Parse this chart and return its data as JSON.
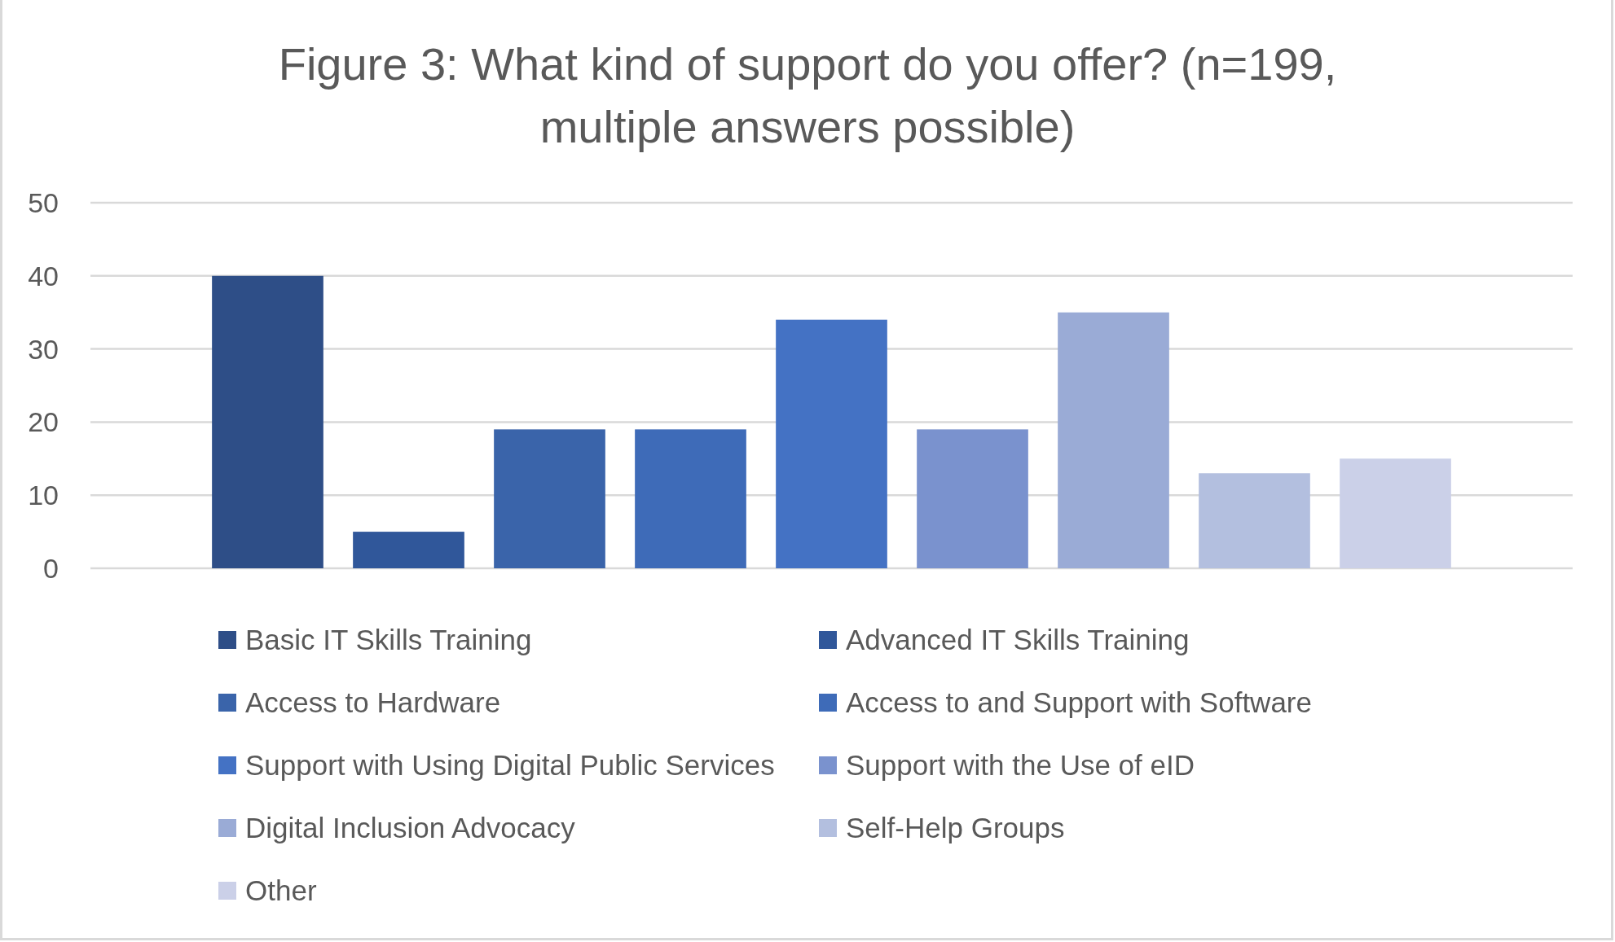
{
  "chart_data": {
    "type": "bar",
    "title": "Figure 3: What kind of support do you offer? (n=199, multiple answers possible)",
    "categories": [
      null
    ],
    "series": [
      {
        "name": "Basic IT Skills Training",
        "color": "#2e4e87",
        "values": [
          40
        ]
      },
      {
        "name": "Advanced IT Skills Training",
        "color": "#30579a",
        "values": [
          5
        ]
      },
      {
        "name": "Access to Hardware",
        "color": "#3a64aa",
        "values": [
          19
        ]
      },
      {
        "name": "Access to and Support with Software",
        "color": "#3e6bb8",
        "values": [
          19
        ]
      },
      {
        "name": "Support with Using Digital Public Services",
        "color": "#4472c4",
        "values": [
          34
        ]
      },
      {
        "name": "Support with the Use of eID",
        "color": "#7a92ce",
        "values": [
          19
        ]
      },
      {
        "name": "Digital Inclusion Advocacy",
        "color": "#9aabd6",
        "values": [
          35
        ]
      },
      {
        "name": "Self-Help Groups",
        "color": "#b3bfdf",
        "values": [
          13
        ]
      },
      {
        "name": "Other",
        "color": "#cbd0e8",
        "values": [
          15
        ]
      }
    ],
    "ylim": [
      0,
      50
    ],
    "yticks": [
      0,
      10,
      20,
      30,
      40,
      50
    ],
    "grid": "y",
    "legend": "bottom"
  }
}
